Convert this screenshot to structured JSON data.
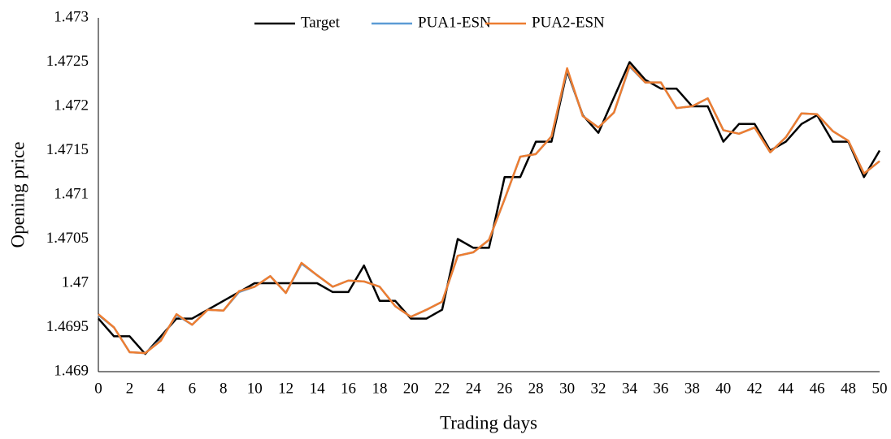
{
  "chart_data": {
    "type": "line",
    "x_label": "Trading days",
    "y_label": "Opening price",
    "x": [
      0,
      1,
      2,
      3,
      4,
      5,
      6,
      7,
      8,
      9,
      10,
      11,
      12,
      13,
      14,
      15,
      16,
      17,
      18,
      19,
      20,
      21,
      22,
      23,
      24,
      25,
      26,
      27,
      28,
      29,
      30,
      31,
      32,
      33,
      34,
      35,
      36,
      37,
      38,
      39,
      40,
      41,
      42,
      43,
      44,
      45,
      46,
      47,
      48,
      49,
      50
    ],
    "series": [
      {
        "name": "Target",
        "color": "#000000",
        "values": [
          1.4696,
          1.4694,
          1.4694,
          1.4692,
          1.4694,
          1.4696,
          1.4696,
          1.4697,
          1.4698,
          1.4699,
          1.47,
          1.47,
          1.47,
          1.47,
          1.47,
          1.4699,
          1.4699,
          1.4702,
          1.4698,
          1.4698,
          1.4696,
          1.4696,
          1.4697,
          1.4705,
          1.4704,
          1.4704,
          1.4712,
          1.4712,
          1.4716,
          1.4716,
          1.4724,
          1.4719,
          1.4717,
          1.4721,
          1.4725,
          1.4723,
          1.4722,
          1.4722,
          1.472,
          1.472,
          1.4716,
          1.4718,
          1.4718,
          1.4715,
          1.4716,
          1.4718,
          1.4719,
          1.4716,
          1.4716,
          1.4712,
          1.4715
        ]
      },
      {
        "name": "PUA1-ESN",
        "color": "#5b9bd5",
        "values": [
          1.46964,
          1.4695,
          1.46922,
          1.46921,
          1.46936,
          1.46964,
          1.46953,
          1.4697,
          1.46969,
          1.4699,
          1.46996,
          1.47008,
          1.46989,
          1.47022,
          1.47009,
          1.46996,
          1.47003,
          1.47002,
          1.46996,
          1.46974,
          1.46962,
          1.4697,
          1.46979,
          1.47031,
          1.47035,
          1.47049,
          1.47095,
          1.47143,
          1.47146,
          1.47166,
          1.47242,
          1.47189,
          1.47176,
          1.47193,
          1.47245,
          1.47227,
          1.47227,
          1.47198,
          1.472,
          1.47209,
          1.47173,
          1.47169,
          1.47176,
          1.47148,
          1.47165,
          1.47192,
          1.47191,
          1.47172,
          1.47161,
          1.47124,
          1.47138
        ]
      },
      {
        "name": "PUA2-ESN",
        "color": "#ed7d31",
        "values": [
          1.46965,
          1.4695,
          1.46922,
          1.46921,
          1.46935,
          1.46965,
          1.46953,
          1.4697,
          1.46969,
          1.46991,
          1.46996,
          1.47008,
          1.46989,
          1.47023,
          1.47009,
          1.46996,
          1.47003,
          1.47002,
          1.46996,
          1.46974,
          1.46962,
          1.4697,
          1.46979,
          1.47031,
          1.47035,
          1.47049,
          1.47095,
          1.47143,
          1.47146,
          1.47166,
          1.47243,
          1.47189,
          1.47176,
          1.47193,
          1.47246,
          1.47227,
          1.47227,
          1.47198,
          1.472,
          1.47209,
          1.47173,
          1.47169,
          1.47176,
          1.47148,
          1.47165,
          1.47192,
          1.47191,
          1.47172,
          1.47161,
          1.47124,
          1.47138
        ]
      }
    ],
    "xlim": [
      0,
      50
    ],
    "xticks": [
      0,
      2,
      4,
      6,
      8,
      10,
      12,
      14,
      16,
      18,
      20,
      22,
      24,
      26,
      28,
      30,
      32,
      34,
      36,
      38,
      40,
      42,
      44,
      46,
      48,
      50
    ],
    "ylim": [
      1.469,
      1.473
    ],
    "yticks": [
      1.469,
      1.4695,
      1.47,
      1.4705,
      1.471,
      1.4715,
      1.472,
      1.4725,
      1.473
    ],
    "grid": false,
    "legend": "top"
  }
}
